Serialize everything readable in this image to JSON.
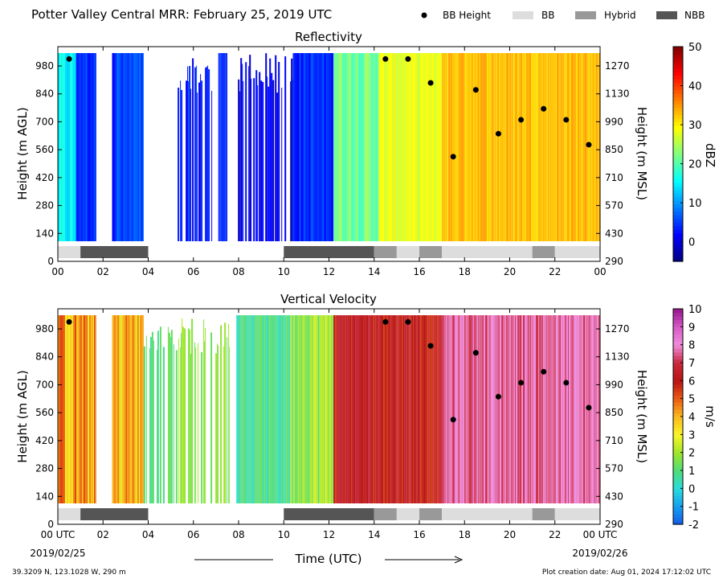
{
  "title": "Potter Valley Central MRR:  February 25, 2019 UTC",
  "legend": [
    {
      "label": "BB Height",
      "kind": "dot",
      "color": "#000000"
    },
    {
      "label": "BB",
      "kind": "box",
      "color": "#dddddd"
    },
    {
      "label": "Hybrid",
      "kind": "box",
      "color": "#999999"
    },
    {
      "label": "NBB",
      "kind": "box",
      "color": "#555555"
    }
  ],
  "footer": {
    "location": "39.3209 N, 123.1028 W, 290 m",
    "created": "Plot creation date: Aug 01, 2024 17:12:02 UTC",
    "xlabel": "Time (UTC)",
    "date_start": "2019/02/25",
    "date_end": "2019/02/26"
  },
  "x_ticks": [
    "00",
    "02",
    "04",
    "06",
    "08",
    "10",
    "12",
    "14",
    "16",
    "18",
    "20",
    "22",
    "00"
  ],
  "x_ticks_bottom": [
    "00 UTC",
    "02",
    "04",
    "06",
    "08",
    "10",
    "12",
    "14",
    "16",
    "18",
    "20",
    "22",
    "00 UTC"
  ],
  "chart_data": [
    {
      "type": "heatmap",
      "title": "Reflectivity",
      "ylabel": "Height (m AGL)",
      "ylabel_right": "Height (m MSL)",
      "yticks_left": [
        "0",
        "140",
        "280",
        "420",
        "560",
        "700",
        "840",
        "980"
      ],
      "yticks_right": [
        "290",
        "430",
        "570",
        "710",
        "850",
        "990",
        "1130",
        "1270"
      ],
      "colorbar": {
        "label": "dBZ",
        "range": [
          -5,
          50
        ],
        "ticks": [
          "0",
          "10",
          "20",
          "30",
          "40",
          "50"
        ],
        "tick_values": [
          0,
          10,
          20,
          30,
          40,
          50
        ]
      },
      "xlim": [
        0,
        24
      ],
      "ylim_agl": [
        0,
        1050
      ],
      "bright_band": [
        {
          "hour": 0.5,
          "height": 1015
        },
        {
          "hour": 14.5,
          "height": 1015
        },
        {
          "hour": 15.5,
          "height": 1015
        },
        {
          "hour": 16.5,
          "height": 895
        },
        {
          "hour": 17.5,
          "height": 525
        },
        {
          "hour": 18.5,
          "height": 860
        },
        {
          "hour": 19.5,
          "height": 640
        },
        {
          "hour": 20.5,
          "height": 710
        },
        {
          "hour": 21.5,
          "height": 765
        },
        {
          "hour": 22.5,
          "height": 710
        },
        {
          "hour": 23.5,
          "height": 585
        }
      ],
      "bb_class": [
        {
          "start": 0.0,
          "end": 1.0,
          "class": "BB"
        },
        {
          "start": 1.0,
          "end": 4.0,
          "class": "NBB"
        },
        {
          "start": 10.0,
          "end": 14.0,
          "class": "NBB"
        },
        {
          "start": 14.0,
          "end": 15.0,
          "class": "Hybrid"
        },
        {
          "start": 15.0,
          "end": 16.0,
          "class": "BB"
        },
        {
          "start": 16.0,
          "end": 17.0,
          "class": "Hybrid"
        },
        {
          "start": 17.0,
          "end": 21.0,
          "class": "BB"
        },
        {
          "start": 21.0,
          "end": 22.0,
          "class": "Hybrid"
        },
        {
          "start": 22.0,
          "end": 24.0,
          "class": "BB"
        }
      ],
      "segments": [
        {
          "start": 0.0,
          "end": 0.8,
          "value": 15,
          "top": 1050,
          "spread": 3
        },
        {
          "start": 0.8,
          "end": 1.7,
          "value": 5,
          "top": 1050,
          "spread": 3
        },
        {
          "start": 2.4,
          "end": 3.8,
          "value": 5,
          "top": 1050,
          "spread": 4
        },
        {
          "start": 5.3,
          "end": 6.9,
          "value": 3,
          "top": 1050,
          "spread": 3,
          "sparse": 1
        },
        {
          "start": 7.1,
          "end": 7.5,
          "value": 3,
          "top": 1050,
          "spread": 2
        },
        {
          "start": 7.9,
          "end": 10.4,
          "value": 1,
          "top": 1050,
          "spread": 3,
          "sparse": 1
        },
        {
          "start": 10.4,
          "end": 12.2,
          "value": 4,
          "top": 1050,
          "spread": 3
        },
        {
          "start": 12.2,
          "end": 14.2,
          "value": 22,
          "top": 1050,
          "spread": 3
        },
        {
          "start": 14.2,
          "end": 17.0,
          "value": 28,
          "top": 1050,
          "spread": 2
        },
        {
          "start": 17.0,
          "end": 24.0,
          "value": 33,
          "top": 1050,
          "spread": 2
        }
      ]
    },
    {
      "type": "heatmap",
      "title": "Vertical Velocity",
      "ylabel": "Height (m AGL)",
      "ylabel_right": "Height (m MSL)",
      "yticks_left": [
        "0",
        "140",
        "280",
        "420",
        "560",
        "700",
        "840",
        "980"
      ],
      "yticks_right": [
        "290",
        "430",
        "570",
        "710",
        "850",
        "990",
        "1130",
        "1270"
      ],
      "colorbar": {
        "label": "m/s",
        "range": [
          -2,
          10
        ],
        "ticks": [
          "-2",
          "-1",
          "0",
          "1",
          "2",
          "3",
          "4",
          "5",
          "6",
          "7",
          "8",
          "9",
          "10"
        ],
        "tick_values": [
          -2,
          -1,
          0,
          1,
          2,
          3,
          4,
          5,
          6,
          7,
          8,
          9,
          10
        ]
      },
      "xlim": [
        0,
        24
      ],
      "ylim_agl": [
        0,
        1050
      ],
      "bright_band": [
        {
          "hour": 0.5,
          "height": 1015
        },
        {
          "hour": 14.5,
          "height": 1015
        },
        {
          "hour": 15.5,
          "height": 1015
        },
        {
          "hour": 16.5,
          "height": 895
        },
        {
          "hour": 17.5,
          "height": 525
        },
        {
          "hour": 18.5,
          "height": 860
        },
        {
          "hour": 19.5,
          "height": 640
        },
        {
          "hour": 20.5,
          "height": 710
        },
        {
          "hour": 21.5,
          "height": 765
        },
        {
          "hour": 22.5,
          "height": 710
        },
        {
          "hour": 23.5,
          "height": 585
        }
      ],
      "bb_class": [
        {
          "start": 0.0,
          "end": 1.0,
          "class": "BB"
        },
        {
          "start": 1.0,
          "end": 4.0,
          "class": "NBB"
        },
        {
          "start": 10.0,
          "end": 14.0,
          "class": "NBB"
        },
        {
          "start": 14.0,
          "end": 15.0,
          "class": "Hybrid"
        },
        {
          "start": 15.0,
          "end": 16.0,
          "class": "BB"
        },
        {
          "start": 16.0,
          "end": 17.0,
          "class": "Hybrid"
        },
        {
          "start": 17.0,
          "end": 21.0,
          "class": "BB"
        },
        {
          "start": 21.0,
          "end": 22.0,
          "class": "Hybrid"
        },
        {
          "start": 22.0,
          "end": 24.0,
          "class": "BB"
        }
      ],
      "segments": [
        {
          "start": 0.0,
          "end": 1.7,
          "value": 4.2,
          "top": 1050,
          "spread": 1.2
        },
        {
          "start": 2.4,
          "end": 3.8,
          "value": 4.0,
          "top": 1050,
          "spread": 1.5
        },
        {
          "start": 3.8,
          "end": 5.3,
          "value": 1.0,
          "top": 1050,
          "spread": 0.5,
          "sparse": 1
        },
        {
          "start": 5.3,
          "end": 7.6,
          "value": 1.6,
          "top": 1050,
          "spread": 0.6,
          "sparse": 1
        },
        {
          "start": 7.9,
          "end": 10.3,
          "value": 0.8,
          "top": 1050,
          "spread": 0.6
        },
        {
          "start": 10.3,
          "end": 12.2,
          "value": 2.0,
          "top": 1050,
          "spread": 0.8
        },
        {
          "start": 12.2,
          "end": 17.0,
          "value": 6.2,
          "top": 1050,
          "spread": 0.8
        },
        {
          "start": 17.0,
          "end": 24.0,
          "value": 7.6,
          "top": 1050,
          "spread": 0.6
        }
      ]
    }
  ]
}
